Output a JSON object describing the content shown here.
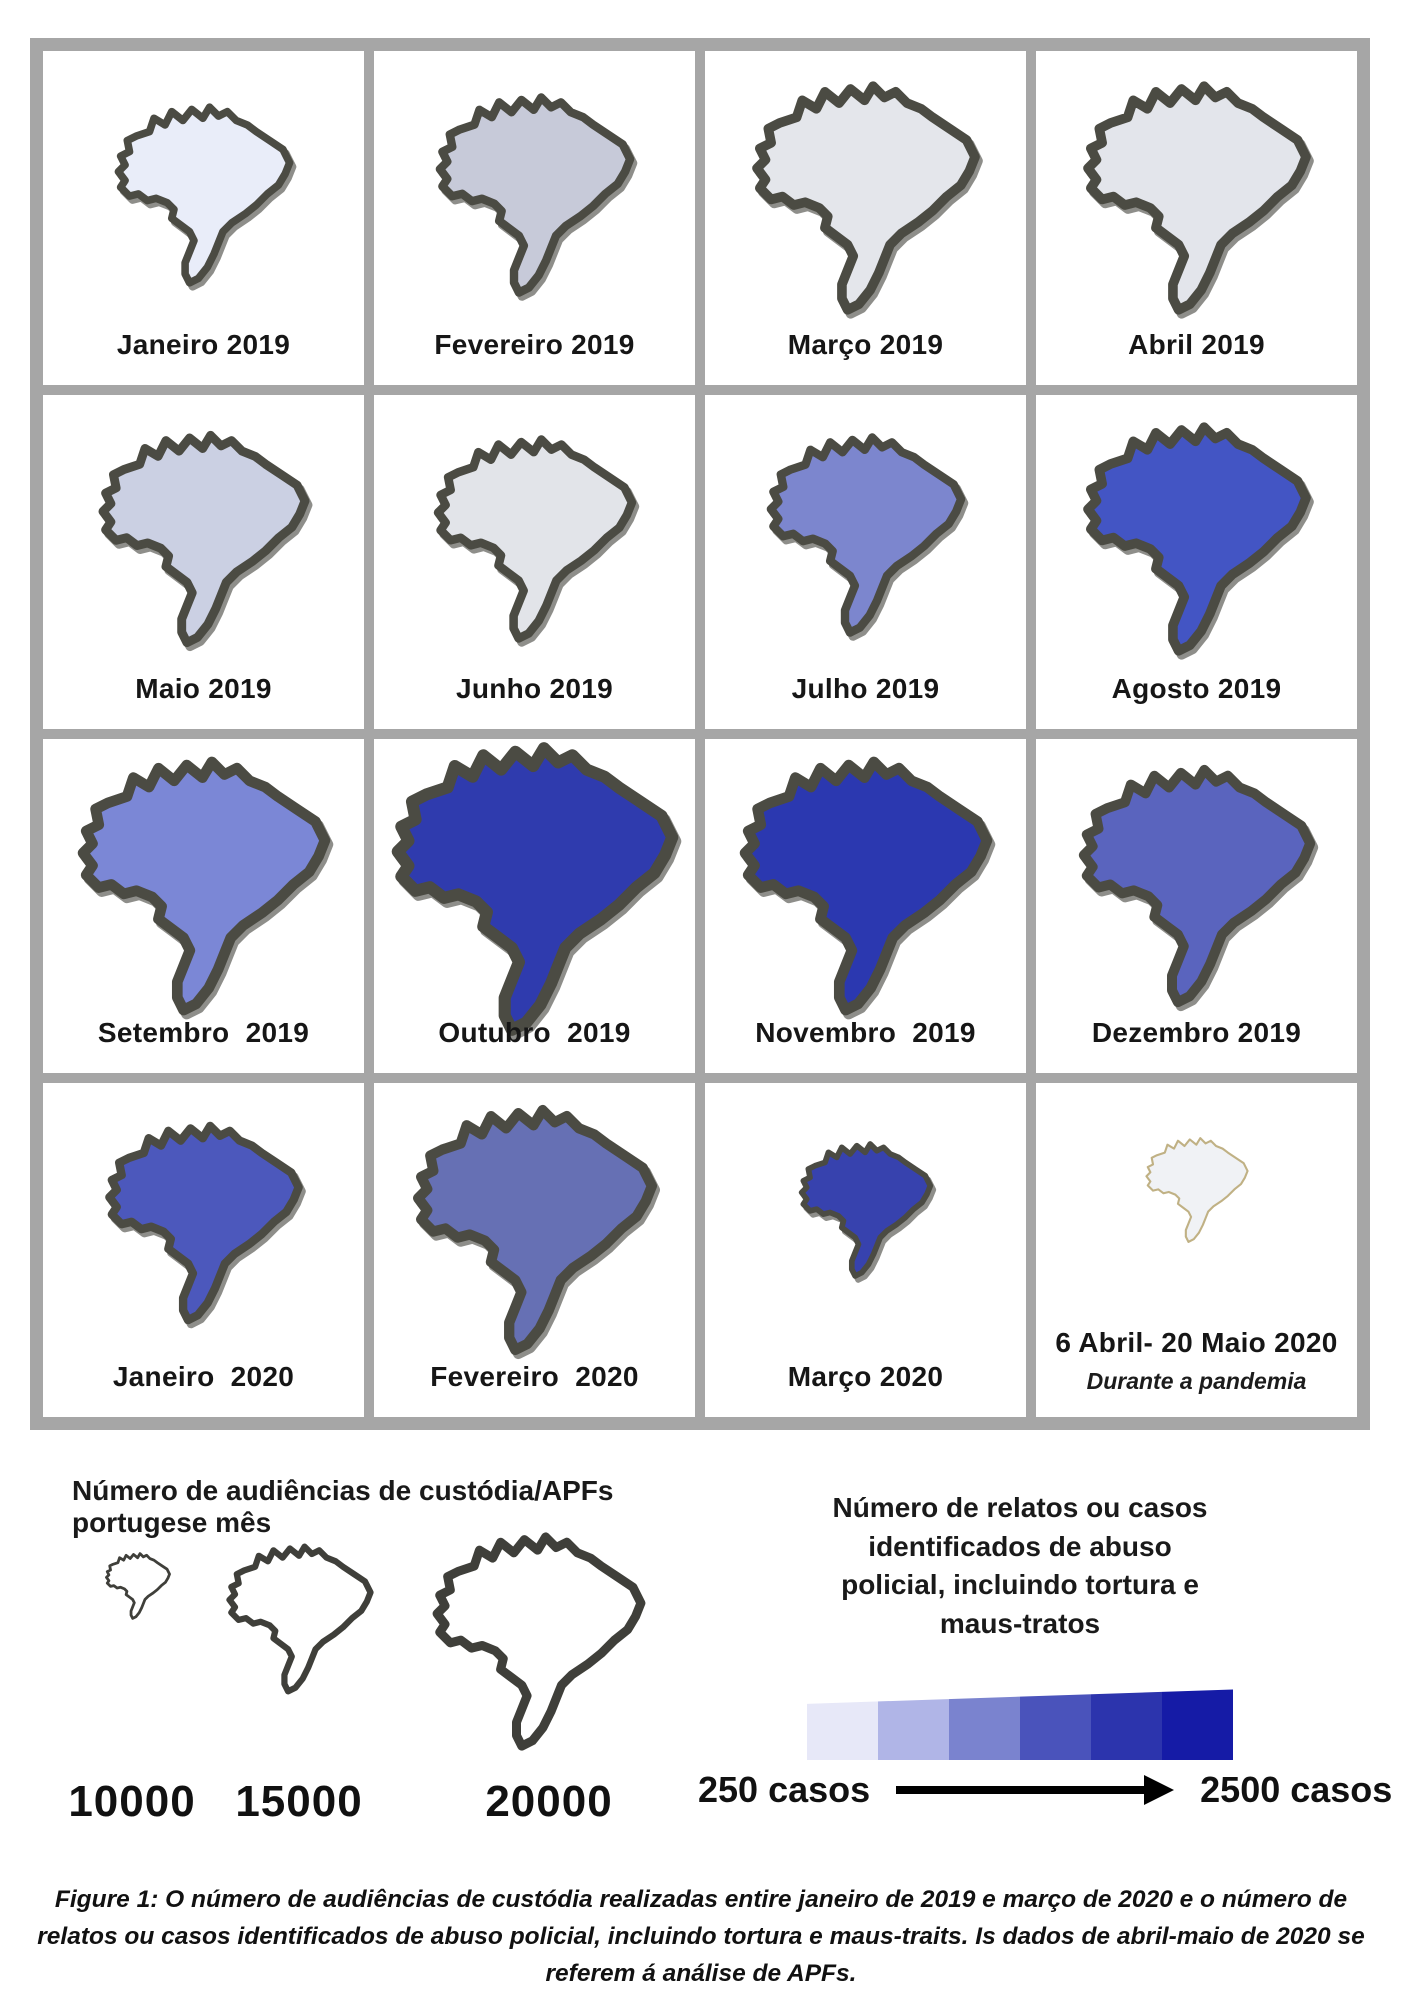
{
  "figure": {
    "months": [
      {
        "label": "Janeiro 2019",
        "fill": "#e9edf9",
        "stroke": "#4b4b43",
        "stroke_width": 3.4,
        "size": 185,
        "map_top_pct": 43,
        "shadow": true
      },
      {
        "label": "Fevereiro 2019",
        "fill": "#c7cad9",
        "stroke": "#4b4b43",
        "stroke_width": 3.4,
        "size": 205,
        "map_top_pct": 43,
        "shadow": true
      },
      {
        "label": "Março 2019",
        "fill": "#e4e6eb",
        "stroke": "#4b4b43",
        "stroke_width": 3.4,
        "size": 235,
        "map_top_pct": 44,
        "shadow": true
      },
      {
        "label": "Abril 2019",
        "fill": "#e3e5eb",
        "stroke": "#4b4b43",
        "stroke_width": 3.4,
        "size": 235,
        "map_top_pct": 44,
        "shadow": true
      },
      {
        "label": "Maio 2019",
        "fill": "#cbd0e3",
        "stroke": "#4b4b43",
        "stroke_width": 3.4,
        "size": 218,
        "map_top_pct": 43,
        "shadow": true
      },
      {
        "label": "Junho 2019",
        "fill": "#e2e4e9",
        "stroke": "#4b4b43",
        "stroke_width": 3.4,
        "size": 209,
        "map_top_pct": 43,
        "shadow": true
      },
      {
        "label": "Julho 2019",
        "fill": "#7c86ce",
        "stroke": "#4b4b43",
        "stroke_width": 3.4,
        "size": 205,
        "map_top_pct": 42,
        "shadow": true
      },
      {
        "label": "Agosto 2019",
        "fill": "#4355c4",
        "stroke": "#4b4b43",
        "stroke_width": 3.4,
        "size": 235,
        "map_top_pct": 43,
        "shadow": true
      },
      {
        "label": "Setembro  2019",
        "fill": "#7b87d6",
        "stroke": "#4b4b43",
        "stroke_width": 3.4,
        "size": 261,
        "map_top_pct": 44,
        "shadow": true
      },
      {
        "label": "Outubro  2019",
        "fill": "#2f3bae",
        "stroke": "#4b4b43",
        "stroke_width": 3.4,
        "size": 296,
        "map_top_pct": 45,
        "shadow": true
      },
      {
        "label": "Novembro  2019",
        "fill": "#2b38b0",
        "stroke": "#4b4b43",
        "stroke_width": 3.4,
        "size": 261,
        "map_top_pct": 44,
        "shadow": true
      },
      {
        "label": "Dezembro 2019",
        "fill": "#5a64be",
        "stroke": "#4b4b43",
        "stroke_width": 3.4,
        "size": 244,
        "map_top_pct": 44,
        "shadow": true
      },
      {
        "label": "Janeiro  2020",
        "fill": "#4c58bc",
        "stroke": "#4b4b43",
        "stroke_width": 3.4,
        "size": 204,
        "map_top_pct": 42,
        "shadow": true
      },
      {
        "label": "Fevereiro  2020",
        "fill": "#6670b4",
        "stroke": "#4b4b43",
        "stroke_width": 3.4,
        "size": 252,
        "map_top_pct": 44,
        "shadow": true
      },
      {
        "label": "Março 2020",
        "fill": "#3742ae",
        "stroke": "#4b4b43",
        "stroke_width": 3.4,
        "size": 139,
        "map_top_pct": 38,
        "shadow": true
      },
      {
        "label": "6 Abril- 20 Maio 2020",
        "sublabel": "Durante a pandemia",
        "fill": "#f0f2f5",
        "stroke": "#c0b184",
        "stroke_width": 1.6,
        "size": 109,
        "map_top_pct": 32,
        "shadow": false
      }
    ]
  },
  "size_legend": {
    "title": "Número de audiências de custódia/APFs portugese mês",
    "stroke": "#3f3f3a",
    "items": [
      {
        "label": "10000",
        "size": 68
      },
      {
        "label": "15000",
        "size": 152
      },
      {
        "label": "20000",
        "size": 220
      }
    ]
  },
  "color_legend": {
    "title": "Número de relatos ou casos identificados de abuso policial, incluindo tortura e maus-tratos",
    "steps": [
      "#e7e8f8",
      "#b0b5e7",
      "#7a83cf",
      "#4a53bb",
      "#2c34ad",
      "#151ba6"
    ],
    "min_label": "250 casos",
    "max_label": "2500 casos"
  },
  "caption": "Figure 1: O número de audiências de custódia realizadas entire janeiro de 2019 e março de 2020 e o número de relatos ou casos identificados de abuso policial, incluindo tortura e maus-traits. Is dados de abril-maio de 2020 se referem á análise de APFs.",
  "chart_data": {
    "type": "table",
    "title": "Figure 1: O número de audiências de custódia realizadas entire janeiro de 2019 e março de 2020 e o número de relatos ou casos identificados de abuso policial, incluindo tortura e maus-traits. Is dados de abril-maio de 2020 se referem á análise de APFs.",
    "size_encoding": {
      "variable": "Número de audiências de custódia/APFs portugese mês",
      "scale_labels": [
        10000,
        15000,
        20000
      ]
    },
    "color_encoding": {
      "variable": "Número de relatos ou casos identificados de abuso policial, incluindo tortura e maus-tratos",
      "range": [
        250,
        2500
      ],
      "palette": [
        "#e7e8f8",
        "#b0b5e7",
        "#7a83cf",
        "#4a53bb",
        "#2c34ad",
        "#151ba6"
      ]
    },
    "categories": [
      "Janeiro 2019",
      "Fevereiro 2019",
      "Março 2019",
      "Abril 2019",
      "Maio 2019",
      "Junho 2019",
      "Julho 2019",
      "Agosto 2019",
      "Setembro 2019",
      "Outubro 2019",
      "Novembro 2019",
      "Dezembro 2019",
      "Janeiro 2020",
      "Fevereiro 2020",
      "Março 2020",
      "6 Abril- 20 Maio 2020 (Durante a pandemia)"
    ],
    "series": [
      {
        "name": "audiencias_de_custodia_aprox",
        "values": [
          17500,
          19000,
          21000,
          21000,
          20000,
          19500,
          19000,
          21000,
          22500,
          25000,
          22500,
          21500,
          19000,
          22000,
          14500,
          12500
        ]
      },
      {
        "name": "casos_de_abuso_aprox",
        "values": [
          250,
          500,
          300,
          300,
          500,
          300,
          1100,
          1700,
          1200,
          2200,
          2200,
          1400,
          1600,
          1200,
          2000,
          null
        ]
      }
    ]
  }
}
